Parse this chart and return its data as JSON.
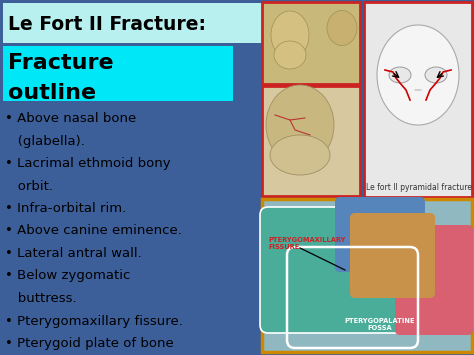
{
  "title": "Le Fort II Fracture:",
  "subtitle_line1": "Fracture",
  "subtitle_line2": "outline",
  "bullet_points": [
    "• Above nasal bone",
    "   (glabella).",
    "• Lacrimal ethmoid bony",
    "   orbit.",
    "• Infra-orbital rim.",
    "• Above canine eminence.",
    "• Lateral antral wall.",
    "• Below zygomatic",
    "   buttress.",
    "• Pterygomaxillary fissure.",
    "• Pterygoid plate of bone"
  ],
  "bg_color": "#3d5f99",
  "title_bg": "#b8f0f0",
  "subtitle_bg": "#00e8f8",
  "title_color": "#000000",
  "bullet_color": "#000000",
  "figsize": [
    4.74,
    3.55
  ],
  "dpi": 100,
  "img1_color": "#c8b87a",
  "img2_color": "#e8e8e8",
  "img3_color": "#d8c8a8",
  "img4_color": "#a8c8b8",
  "border1_color": "#cc2222",
  "border2_color": "#cc2222",
  "border3_color": "#cc2222",
  "border4_color": "#cc8800",
  "caption_text": "Le fort II pyramidal fracture",
  "label1_text": "PTERYGOMAXILLARY\nFISSURE",
  "label2_text": "PTERYGOPALATINE\nFOSSA"
}
